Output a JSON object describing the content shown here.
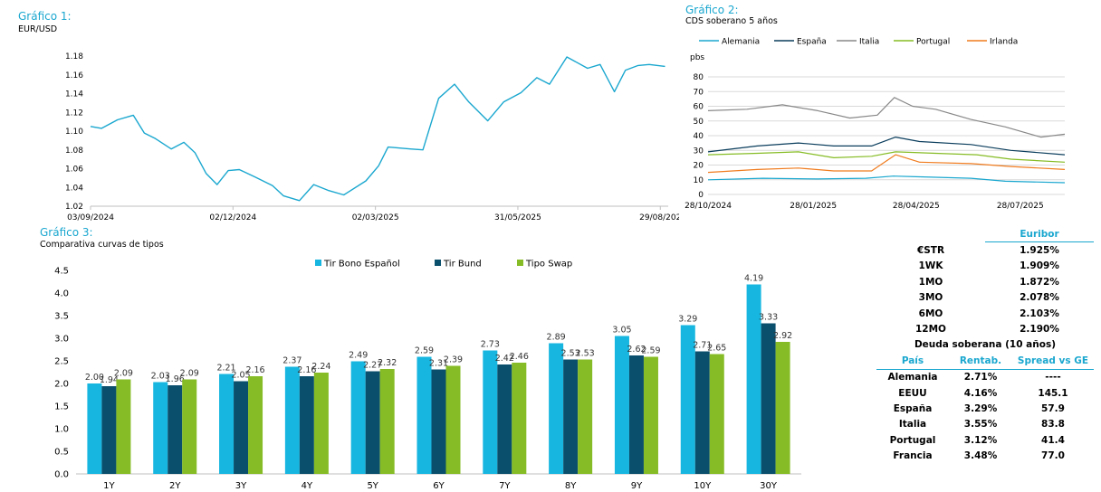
{
  "chart_data": [
    {
      "id": "g1",
      "type": "line",
      "title": "Gráfico 1:",
      "subtitle": "EUR/USD",
      "color": "#1aa7cf",
      "ylim": [
        1.02,
        1.18
      ],
      "y_ticks": [
        "1.02",
        "1.04",
        "1.06",
        "1.08",
        "1.10",
        "1.12",
        "1.14",
        "1.16",
        "1.18"
      ],
      "x_ticks": [
        "03/09/2024",
        "02/12/2024",
        "02/03/2025",
        "31/05/2025",
        "29/08/202"
      ],
      "x_tick_dates": [
        "2024-09-03",
        "2024-12-02",
        "2025-03-02",
        "2025-05-31",
        "2025-08-29"
      ],
      "x_range": [
        "2024-09-03",
        "2025-09-03"
      ],
      "series": [
        {
          "points": [
            [
              "2024-09-03",
              1.105
            ],
            [
              "2024-09-10",
              1.103
            ],
            [
              "2024-09-20",
              1.112
            ],
            [
              "2024-09-30",
              1.117
            ],
            [
              "2024-10-07",
              1.098
            ],
            [
              "2024-10-14",
              1.092
            ],
            [
              "2024-10-24",
              1.081
            ],
            [
              "2024-11-01",
              1.088
            ],
            [
              "2024-11-08",
              1.077
            ],
            [
              "2024-11-15",
              1.055
            ],
            [
              "2024-11-22",
              1.043
            ],
            [
              "2024-11-29",
              1.058
            ],
            [
              "2024-12-06",
              1.059
            ],
            [
              "2024-12-16",
              1.051
            ],
            [
              "2024-12-27",
              1.042
            ],
            [
              "2025-01-03",
              1.031
            ],
            [
              "2025-01-13",
              1.026
            ],
            [
              "2025-01-22",
              1.043
            ],
            [
              "2025-01-31",
              1.037
            ],
            [
              "2025-02-10",
              1.032
            ],
            [
              "2025-02-24",
              1.047
            ],
            [
              "2025-03-04",
              1.063
            ],
            [
              "2025-03-10",
              1.083
            ],
            [
              "2025-03-24",
              1.081
            ],
            [
              "2025-04-01",
              1.08
            ],
            [
              "2025-04-11",
              1.135
            ],
            [
              "2025-04-21",
              1.15
            ],
            [
              "2025-04-30",
              1.131
            ],
            [
              "2025-05-12",
              1.111
            ],
            [
              "2025-05-22",
              1.131
            ],
            [
              "2025-06-02",
              1.141
            ],
            [
              "2025-06-12",
              1.157
            ],
            [
              "2025-06-20",
              1.15
            ],
            [
              "2025-07-01",
              1.179
            ],
            [
              "2025-07-14",
              1.167
            ],
            [
              "2025-07-22",
              1.171
            ],
            [
              "2025-07-31",
              1.142
            ],
            [
              "2025-08-07",
              1.165
            ],
            [
              "2025-08-15",
              1.17
            ],
            [
              "2025-08-22",
              1.171
            ],
            [
              "2025-09-01",
              1.169
            ]
          ]
        }
      ]
    },
    {
      "id": "g2",
      "type": "line",
      "title": "Gráfico 2:",
      "subtitle": "CDS soberano 5 años",
      "ylabel": "pbs",
      "ylim": [
        0,
        80
      ],
      "y_ticks": [
        "0",
        "10",
        "20",
        "30",
        "40",
        "50",
        "60",
        "70",
        "80"
      ],
      "x_ticks": [
        "28/10/2024",
        "28/01/2025",
        "28/04/2025",
        "28/07/2025"
      ],
      "x_tick_dates": [
        "2024-10-28",
        "2025-01-28",
        "2025-04-28",
        "2025-07-28"
      ],
      "x_range": [
        "2024-10-28",
        "2025-09-05"
      ],
      "legend_position": "top",
      "series": [
        {
          "name": "Alemania",
          "color": "#1aa7cf",
          "points": [
            [
              "2024-10-28",
              10
            ],
            [
              "2024-12-15",
              11
            ],
            [
              "2025-02-01",
              10.5
            ],
            [
              "2025-03-15",
              11
            ],
            [
              "2025-04-08",
              12.5
            ],
            [
              "2025-05-01",
              12
            ],
            [
              "2025-06-15",
              11
            ],
            [
              "2025-07-15",
              9
            ],
            [
              "2025-09-05",
              8
            ]
          ]
        },
        {
          "name": "España",
          "color": "#0a3d5c",
          "points": [
            [
              "2024-10-28",
              29
            ],
            [
              "2024-12-10",
              33
            ],
            [
              "2025-01-15",
              35
            ],
            [
              "2025-02-15",
              33
            ],
            [
              "2025-03-20",
              33
            ],
            [
              "2025-04-10",
              39
            ],
            [
              "2025-05-01",
              36
            ],
            [
              "2025-06-15",
              34
            ],
            [
              "2025-07-20",
              30
            ],
            [
              "2025-09-05",
              27
            ]
          ]
        },
        {
          "name": "Italia",
          "color": "#888888",
          "points": [
            [
              "2024-10-28",
              57
            ],
            [
              "2024-12-01",
              58
            ],
            [
              "2025-01-01",
              61
            ],
            [
              "2025-02-01",
              57
            ],
            [
              "2025-03-01",
              52
            ],
            [
              "2025-03-25",
              54
            ],
            [
              "2025-04-09",
              66
            ],
            [
              "2025-04-25",
              60
            ],
            [
              "2025-05-15",
              58
            ],
            [
              "2025-06-15",
              51
            ],
            [
              "2025-07-15",
              46
            ],
            [
              "2025-08-15",
              39
            ],
            [
              "2025-09-05",
              41
            ]
          ]
        },
        {
          "name": "Portugal",
          "color": "#86bc25",
          "points": [
            [
              "2024-10-28",
              27
            ],
            [
              "2024-12-10",
              28
            ],
            [
              "2025-01-15",
              29
            ],
            [
              "2025-02-15",
              25
            ],
            [
              "2025-03-20",
              26
            ],
            [
              "2025-04-10",
              29
            ],
            [
              "2025-05-15",
              28
            ],
            [
              "2025-06-20",
              27
            ],
            [
              "2025-07-20",
              24
            ],
            [
              "2025-09-05",
              22
            ]
          ]
        },
        {
          "name": "Irlanda",
          "color": "#f07c1f",
          "points": [
            [
              "2024-10-28",
              15
            ],
            [
              "2024-12-10",
              17
            ],
            [
              "2025-01-15",
              18
            ],
            [
              "2025-02-15",
              16
            ],
            [
              "2025-03-20",
              16
            ],
            [
              "2025-04-10",
              27
            ],
            [
              "2025-05-01",
              22
            ],
            [
              "2025-06-15",
              21
            ],
            [
              "2025-07-20",
              19
            ],
            [
              "2025-09-05",
              17
            ]
          ]
        }
      ]
    },
    {
      "id": "g3",
      "type": "bar",
      "title": "Gráfico 3:",
      "subtitle": "Comparativa curvas de tipos",
      "ylim": [
        0,
        4.5
      ],
      "y_ticks": [
        "0.0",
        "0.5",
        "1.0",
        "1.5",
        "2.0",
        "2.5",
        "3.0",
        "3.5",
        "4.0",
        "4.5"
      ],
      "categories": [
        "1Y",
        "2Y",
        "3Y",
        "4Y",
        "5Y",
        "6Y",
        "7Y",
        "8Y",
        "9Y",
        "10Y",
        "30Y"
      ],
      "legend_position": "top",
      "series": [
        {
          "name": "Tir Bono Español",
          "color": "#16b6e0",
          "values": [
            2.0,
            2.03,
            2.21,
            2.37,
            2.49,
            2.59,
            2.73,
            2.89,
            3.05,
            3.29,
            4.19
          ],
          "labels": [
            "2.00",
            "2.03",
            "2.21",
            "2.37",
            "2.49",
            "2.59",
            "2.73",
            "2.89",
            "3.05",
            "3.29",
            "4.19"
          ]
        },
        {
          "name": "Tir Bund",
          "color": "#0a4f6c",
          "values": [
            1.94,
            1.96,
            2.05,
            2.16,
            2.27,
            2.31,
            2.42,
            2.53,
            2.62,
            2.71,
            3.33
          ],
          "labels": [
            "1.94",
            "1.96",
            "2.05",
            "2.16",
            "2.27",
            "2.31",
            "2.42",
            "2.53",
            "2.62",
            "2.71",
            "3.33"
          ]
        },
        {
          "name": "Tipo Swap",
          "color": "#86bc25",
          "values": [
            2.09,
            2.09,
            2.16,
            2.24,
            2.32,
            2.39,
            2.46,
            2.53,
            2.59,
            2.65,
            2.92
          ],
          "labels": [
            "2.09",
            "2.09",
            "2.16",
            "2.24",
            "2.32",
            "2.39",
            "2.46",
            "2.53",
            "2.59",
            "2.65",
            "2.92"
          ]
        }
      ]
    },
    {
      "id": "t1",
      "type": "table",
      "header": "Euribor",
      "rows": [
        [
          "€STR",
          "1.925%"
        ],
        [
          "1WK",
          "1.909%"
        ],
        [
          "1MO",
          "1.872%"
        ],
        [
          "3MO",
          "2.078%"
        ],
        [
          "6MO",
          "2.103%"
        ],
        [
          "12MO",
          "2.190%"
        ]
      ]
    },
    {
      "id": "t2",
      "type": "table",
      "title": "Deuda soberana (10 años)",
      "columns": [
        "País",
        "Rentab.",
        "Spread vs GE"
      ],
      "rows": [
        [
          "Alemania",
          "2.71%",
          "----"
        ],
        [
          "EEUU",
          "4.16%",
          "145.1"
        ],
        [
          "España",
          "3.29%",
          "57.9"
        ],
        [
          "Italia",
          "3.55%",
          "83.8"
        ],
        [
          "Portugal",
          "3.12%",
          "41.4"
        ],
        [
          "Francia",
          "3.48%",
          "77.0"
        ]
      ]
    }
  ],
  "text": {
    "g1_title": "Gráfico 1:",
    "g1_sub": "EUR/USD",
    "g2_title": "Gráfico 2:",
    "g2_sub": "CDS soberano 5 años",
    "g3_title": "Gráfico 3:",
    "g3_sub": "Comparativa curvas de tipos",
    "euribor_header": "Euribor",
    "debt_title": "Deuda soberana (10 años)",
    "col_pais": "País",
    "col_rent": "Rentab.",
    "col_spread": "Spread vs GE"
  },
  "colors": {
    "accent": "#1aa7cf",
    "axis": "#bfbfbf",
    "grid": "#d9d9d9"
  }
}
